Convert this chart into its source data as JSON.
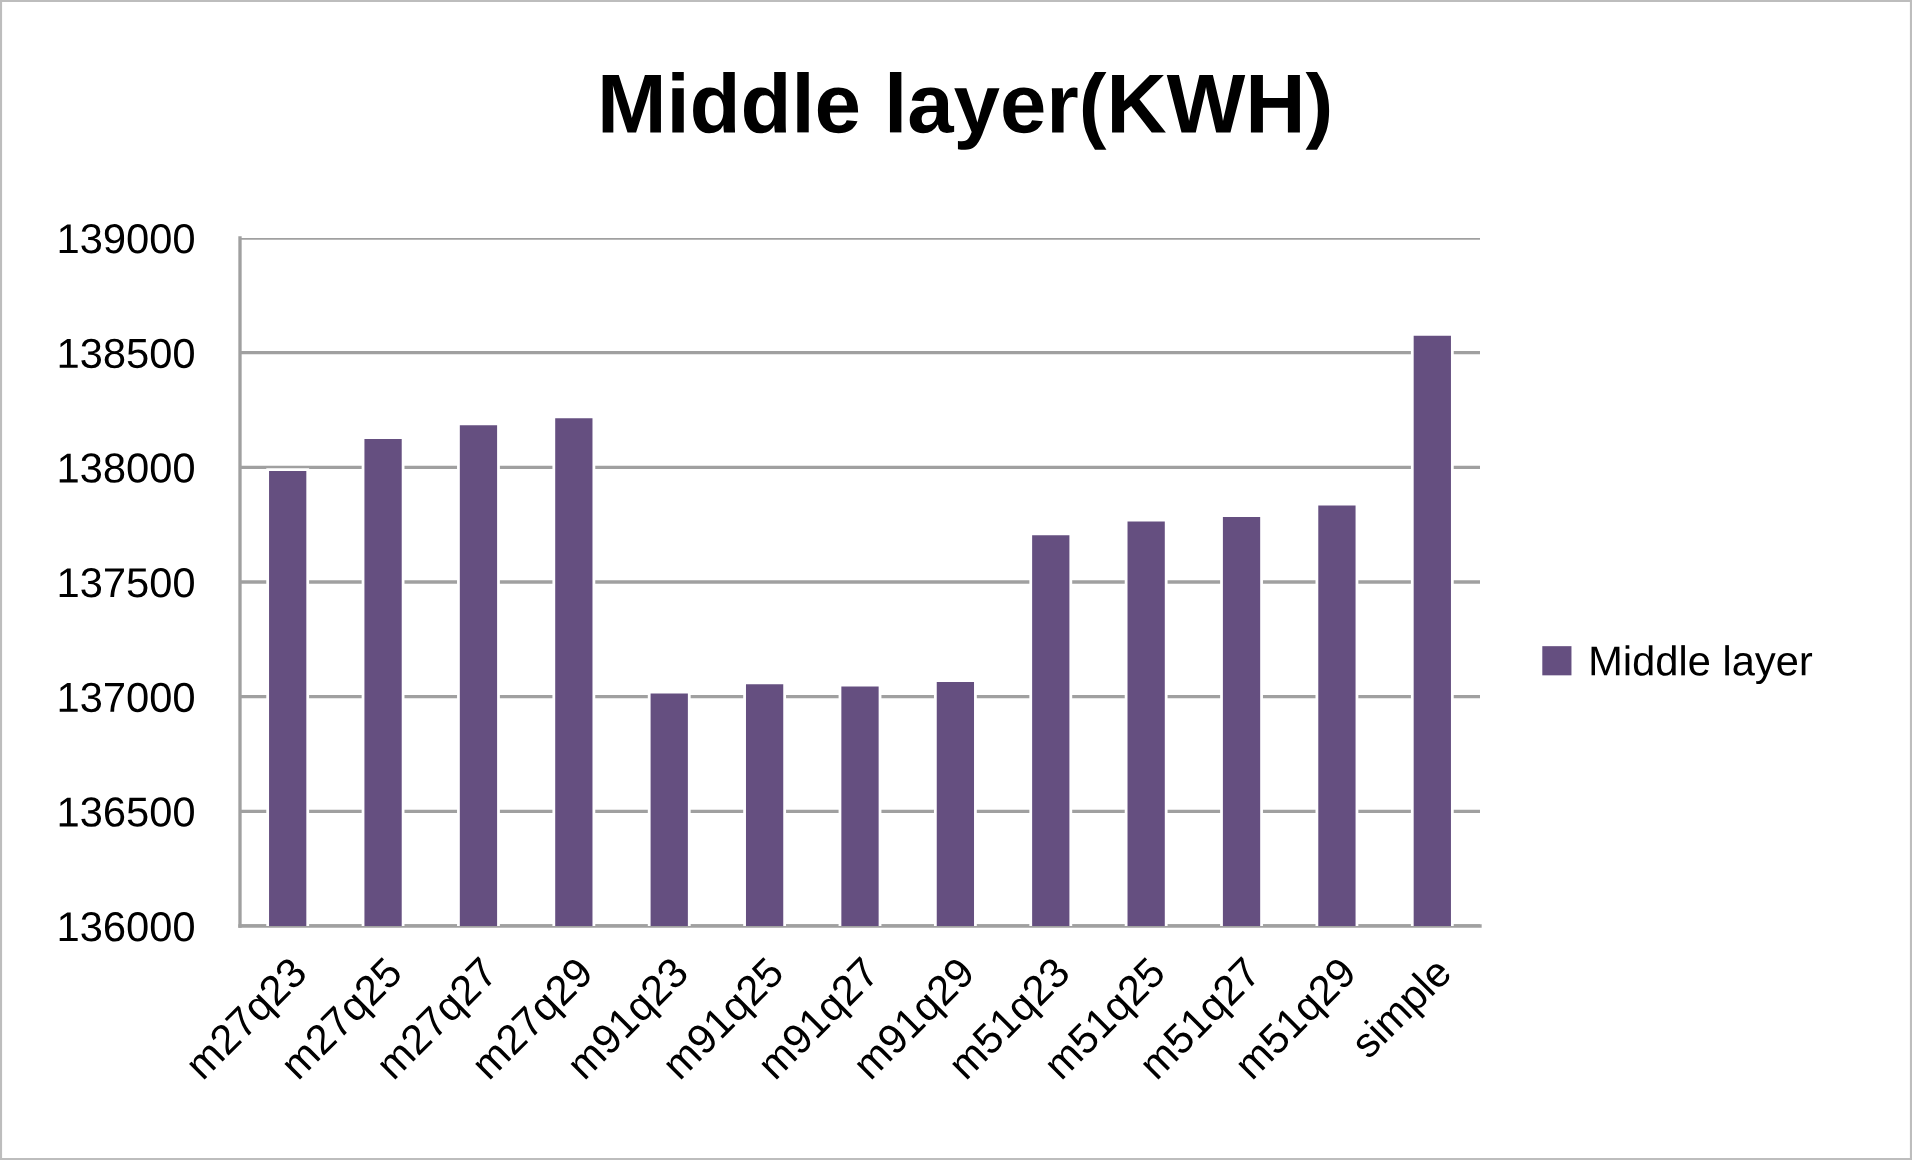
{
  "chart_data": {
    "type": "bar",
    "title": "Middle layer(KWH)",
    "categories": [
      "m27q23",
      "m27q25",
      "m27q27",
      "m27q29",
      "m91q23",
      "m91q25",
      "m91q27",
      "m91q29",
      "m51q23",
      "m51q25",
      "m51q27",
      "m51q29",
      "simple"
    ],
    "series": [
      {
        "name": "Middle layer",
        "color": "#654f80",
        "values": [
          137990,
          138130,
          138190,
          138220,
          137020,
          137060,
          137050,
          137070,
          137710,
          137770,
          137790,
          137840,
          138580
        ]
      }
    ],
    "ylim": [
      136000,
      139000
    ],
    "yticks": [
      136000,
      136500,
      137000,
      137500,
      138000,
      138500,
      139000
    ],
    "grid": "y",
    "legend": "right"
  }
}
